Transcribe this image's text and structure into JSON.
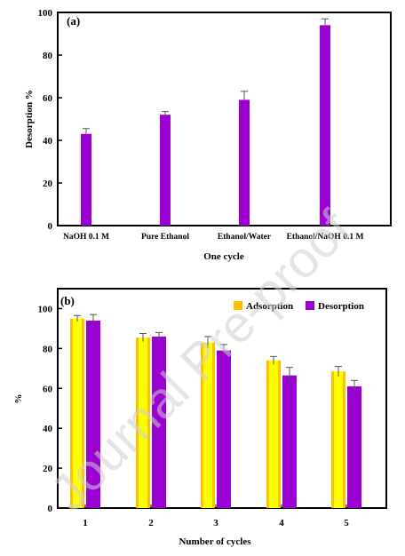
{
  "watermark": "Journal Pre-proof",
  "chart_data": [
    {
      "type": "bar",
      "panel_label": "(a)",
      "xlabel": "One cycle",
      "ylabel": "Desorption %",
      "ylim": [
        0,
        100
      ],
      "yticks": [
        0,
        20,
        40,
        60,
        80,
        100
      ],
      "categories": [
        "NaOH 0.1 M",
        "Pure Ethanol",
        "Ethanol/Water",
        "Ethanol/NaOH 0.1 M"
      ],
      "series": [
        {
          "values": [
            43,
            52,
            59,
            94
          ],
          "errors": [
            2.5,
            1.5,
            4,
            3
          ],
          "color": "#9b00d3"
        }
      ],
      "legend": null
    },
    {
      "type": "bar",
      "panel_label": "(b)",
      "xlabel": "Number of cycles",
      "ylabel": "%",
      "ylim": [
        0,
        110
      ],
      "yticks": [
        0,
        20,
        40,
        60,
        80,
        100
      ],
      "categories": [
        "1",
        "2",
        "3",
        "4",
        "5"
      ],
      "series": [
        {
          "name": "Adsorption",
          "values": [
            95,
            85.5,
            83,
            74,
            68.5
          ],
          "errors": [
            1.5,
            2,
            3,
            2,
            2.5
          ],
          "color": "#ffc000",
          "inner_color": "#ffff00"
        },
        {
          "name": "Desorption",
          "values": [
            94,
            86,
            79,
            66.5,
            61
          ],
          "errors": [
            3,
            2,
            3,
            4,
            3
          ],
          "color": "#9b00d3"
        }
      ],
      "legend": "top-right"
    }
  ]
}
